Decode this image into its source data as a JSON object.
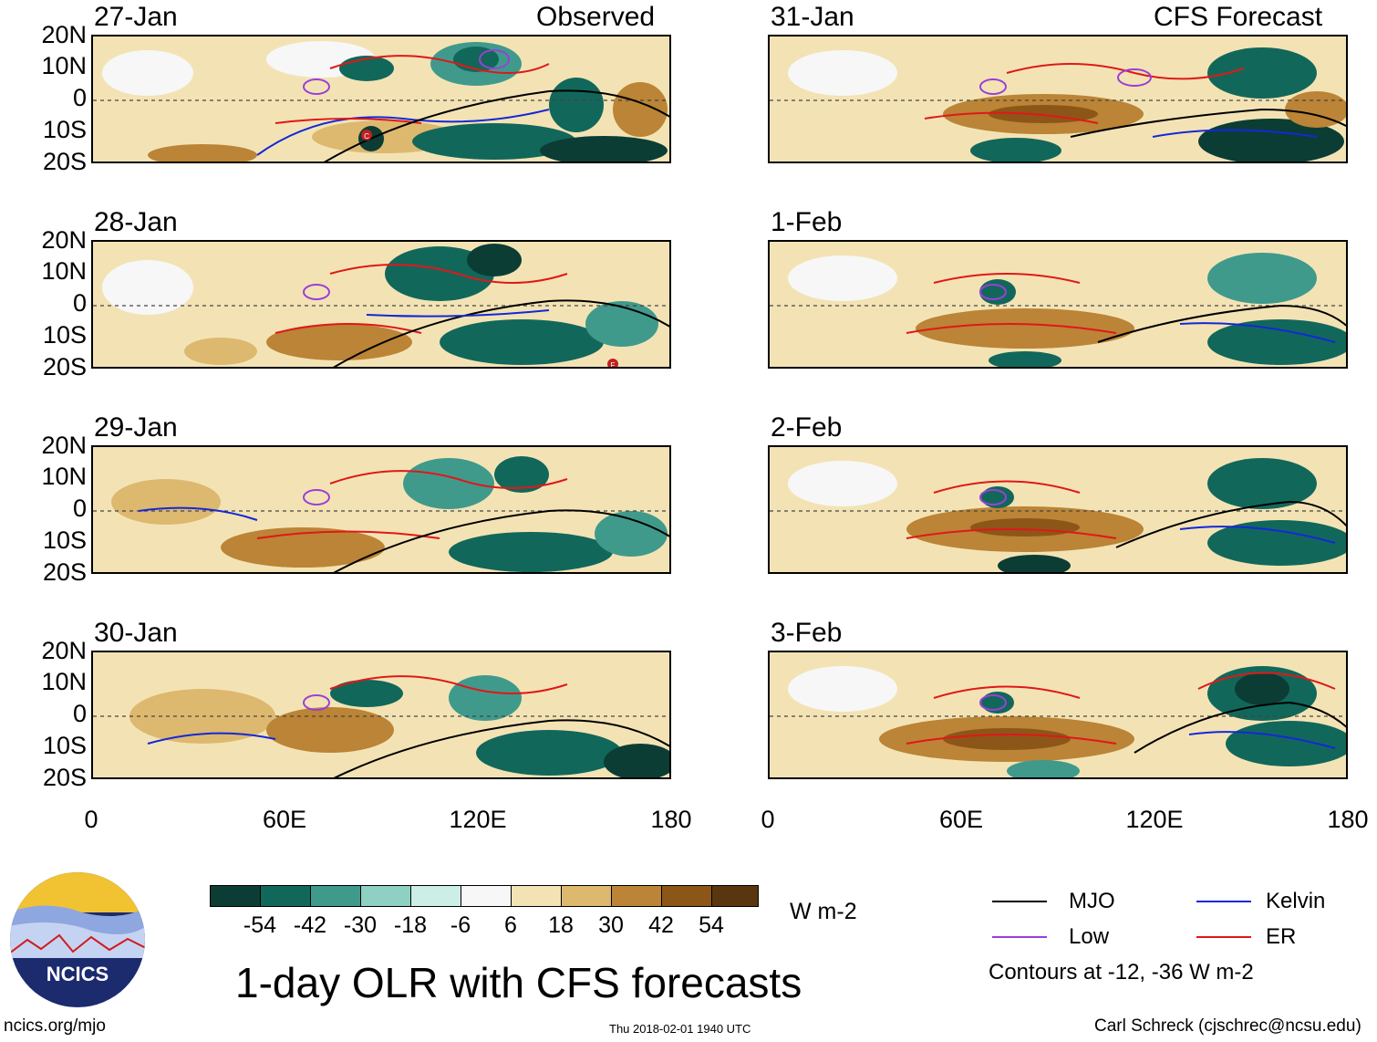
{
  "panels_left": [
    {
      "date": "27-Jan",
      "tag": "Observed"
    },
    {
      "date": "28-Jan",
      "tag": ""
    },
    {
      "date": "29-Jan",
      "tag": ""
    },
    {
      "date": "30-Jan",
      "tag": ""
    }
  ],
  "panels_right": [
    {
      "date": "31-Jan",
      "tag": "CFS Forecast"
    },
    {
      "date": "1-Feb",
      "tag": ""
    },
    {
      "date": "2-Feb",
      "tag": ""
    },
    {
      "date": "3-Feb",
      "tag": ""
    }
  ],
  "lat_labels": [
    "20N",
    "10N",
    "0",
    "10S",
    "20S"
  ],
  "lon_labels": [
    "0",
    "60E",
    "120E",
    "180"
  ],
  "colorbar": {
    "labels": [
      "-54",
      "-42",
      "-30",
      "-18",
      "-6",
      "6",
      "18",
      "30",
      "42",
      "54"
    ],
    "colors": [
      "#0b3d35",
      "#12675b",
      "#3f9a8c",
      "#8ed1c2",
      "#cdeee6",
      "#f7f7f7",
      "#f3e3b4",
      "#ddb86f",
      "#bb8436",
      "#8c5618",
      "#5a3610"
    ],
    "units": "W m-2"
  },
  "legend": {
    "mjo": "MJO",
    "kelvin": "Kelvin",
    "low": "Low",
    "er": "ER",
    "note": "Contours at -12, -36 W m-2",
    "colors": {
      "mjo": "#000000",
      "kelvin": "#1428d8",
      "low": "#9b3fd8",
      "er": "#e01818"
    }
  },
  "title": "1-day OLR with CFS forecasts",
  "logo_text": "NCICS",
  "footer": {
    "url": "ncics.org/mjo",
    "timestamp": "Thu 2018-02-01 1940 UTC",
    "author": "Carl Schreck (cjschrec@ncsu.edu)"
  },
  "markers": [
    "C",
    "F"
  ]
}
